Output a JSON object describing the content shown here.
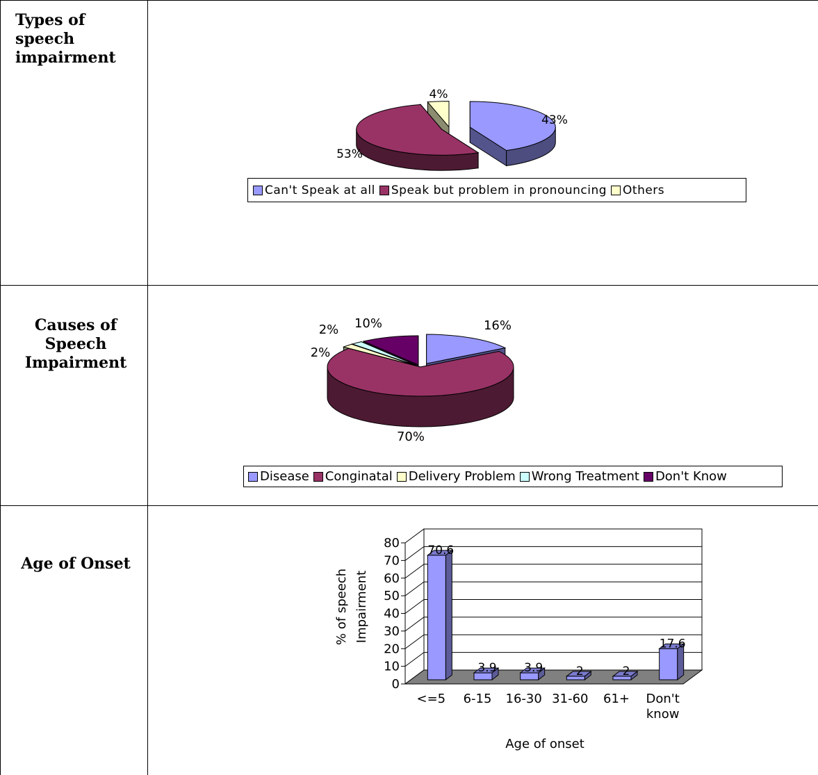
{
  "rows": [
    {
      "label": "Types of\nspeech\nimpairment"
    },
    {
      "label": "Causes of\nSpeech\nImpairment"
    },
    {
      "label": "Age of Onset"
    }
  ],
  "chart_data": [
    {
      "type": "pie",
      "style": "3d",
      "categories": [
        "Can't Speak at all",
        "Speak but problem in pronouncing",
        "Others"
      ],
      "values": [
        43,
        53,
        4
      ],
      "data_labels": [
        "43%",
        "53%",
        "4%"
      ],
      "legend_position": "bottom",
      "colors": [
        "#9999FF",
        "#993366",
        "#FFFFCC"
      ]
    },
    {
      "type": "pie",
      "style": "3d",
      "categories": [
        "Disease",
        "Conginatal",
        "Delivery Problem",
        "Wrong Treatment",
        "Don't Know"
      ],
      "values": [
        16,
        70,
        2,
        2,
        10
      ],
      "data_labels": [
        "16%",
        "70%",
        "2%",
        "2%",
        "10%"
      ],
      "legend_position": "bottom",
      "colors": [
        "#9999FF",
        "#993366",
        "#FFFFCC",
        "#CCFFFF",
        "#660066"
      ]
    },
    {
      "type": "bar",
      "style": "3d",
      "categories": [
        "<=5",
        "6-15",
        "16-30",
        "31-60",
        "61+",
        "Don't know"
      ],
      "category_lines": [
        [
          "<=5"
        ],
        [
          "6-15"
        ],
        [
          "16-30"
        ],
        [
          "31-60"
        ],
        [
          "61+"
        ],
        [
          "Don't",
          "know"
        ]
      ],
      "values": [
        70.6,
        3.9,
        3.9,
        2,
        2,
        17.6
      ],
      "data_labels": [
        "70.6",
        "3.9",
        "3.9",
        "2",
        "2",
        "17.6"
      ],
      "xlabel": "Age of onset",
      "ylabel": [
        "% of speech",
        "Impairment"
      ],
      "ylim": [
        0,
        80
      ],
      "yticks": [
        "0",
        "10",
        "20",
        "30",
        "40",
        "50",
        "60",
        "70",
        "80"
      ],
      "grid": true,
      "colors": {
        "bar": "#9999FF",
        "floor": "#808080"
      }
    }
  ]
}
